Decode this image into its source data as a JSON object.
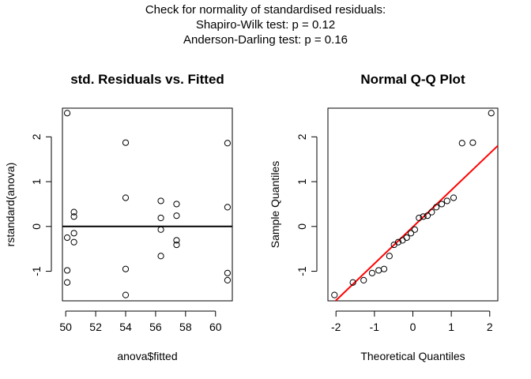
{
  "suptitle": [
    "Check for normality of standardised residuals:",
    "Shapiro-Wilk test: p =  0.12",
    "Anderson-Darling test: p =  0.16"
  ],
  "chart_data": [
    {
      "type": "scatter",
      "title": "std. Residuals vs. Fitted",
      "xlabel": "anova$fitted",
      "ylabel": "rstandard(anova)",
      "xlim": [
        49.78,
        61.12
      ],
      "ylim": [
        -1.66,
        2.64
      ],
      "xticks": [
        50,
        52,
        54,
        56,
        58,
        60
      ],
      "yticks": [
        -1,
        0,
        1,
        2
      ],
      "hline": 0,
      "points": [
        {
          "x": 50.1,
          "y": 2.53
        },
        {
          "x": 50.1,
          "y": -0.25
        },
        {
          "x": 50.1,
          "y": -0.98
        },
        {
          "x": 50.1,
          "y": -1.25
        },
        {
          "x": 50.55,
          "y": 0.32
        },
        {
          "x": 50.55,
          "y": 0.22
        },
        {
          "x": 50.55,
          "y": -0.15
        },
        {
          "x": 50.55,
          "y": -0.35
        },
        {
          "x": 54.0,
          "y": 1.87
        },
        {
          "x": 54.0,
          "y": 0.64
        },
        {
          "x": 54.0,
          "y": -0.95
        },
        {
          "x": 54.0,
          "y": -1.53
        },
        {
          "x": 56.35,
          "y": 0.57
        },
        {
          "x": 56.35,
          "y": 0.19
        },
        {
          "x": 56.35,
          "y": -0.07
        },
        {
          "x": 56.35,
          "y": -0.66
        },
        {
          "x": 57.4,
          "y": 0.5
        },
        {
          "x": 57.4,
          "y": 0.24
        },
        {
          "x": 57.4,
          "y": -0.31
        },
        {
          "x": 57.4,
          "y": -0.41
        },
        {
          "x": 60.8,
          "y": 1.86
        },
        {
          "x": 60.8,
          "y": 0.43
        },
        {
          "x": 60.8,
          "y": -1.04
        },
        {
          "x": 60.8,
          "y": -1.2
        }
      ]
    },
    {
      "type": "scatter",
      "title": "Normal Q-Q Plot",
      "xlabel": "Theoretical Quantiles",
      "ylabel": "Sample Quantiles",
      "xlim": [
        -2.21,
        2.21
      ],
      "ylim": [
        -1.66,
        2.64
      ],
      "xticks": [
        -2,
        -1,
        0,
        1,
        2
      ],
      "yticks": [
        -1,
        0,
        1,
        2
      ],
      "line": {
        "color": "#ff0000",
        "intercept": -0.01,
        "slope": 0.82
      },
      "points": [
        {
          "x": -2.04,
          "y": -1.53
        },
        {
          "x": -1.56,
          "y": -1.25
        },
        {
          "x": -1.28,
          "y": -1.2
        },
        {
          "x": -1.06,
          "y": -1.04
        },
        {
          "x": -0.89,
          "y": -0.98
        },
        {
          "x": -0.75,
          "y": -0.95
        },
        {
          "x": -0.61,
          "y": -0.66
        },
        {
          "x": -0.49,
          "y": -0.41
        },
        {
          "x": -0.38,
          "y": -0.35
        },
        {
          "x": -0.27,
          "y": -0.31
        },
        {
          "x": -0.16,
          "y": -0.25
        },
        {
          "x": -0.05,
          "y": -0.15
        },
        {
          "x": 0.05,
          "y": -0.07
        },
        {
          "x": 0.16,
          "y": 0.19
        },
        {
          "x": 0.27,
          "y": 0.22
        },
        {
          "x": 0.38,
          "y": 0.24
        },
        {
          "x": 0.49,
          "y": 0.32
        },
        {
          "x": 0.61,
          "y": 0.43
        },
        {
          "x": 0.75,
          "y": 0.5
        },
        {
          "x": 0.89,
          "y": 0.57
        },
        {
          "x": 1.06,
          "y": 0.64
        },
        {
          "x": 1.28,
          "y": 1.86
        },
        {
          "x": 1.56,
          "y": 1.87
        },
        {
          "x": 2.04,
          "y": 2.53
        }
      ]
    }
  ]
}
